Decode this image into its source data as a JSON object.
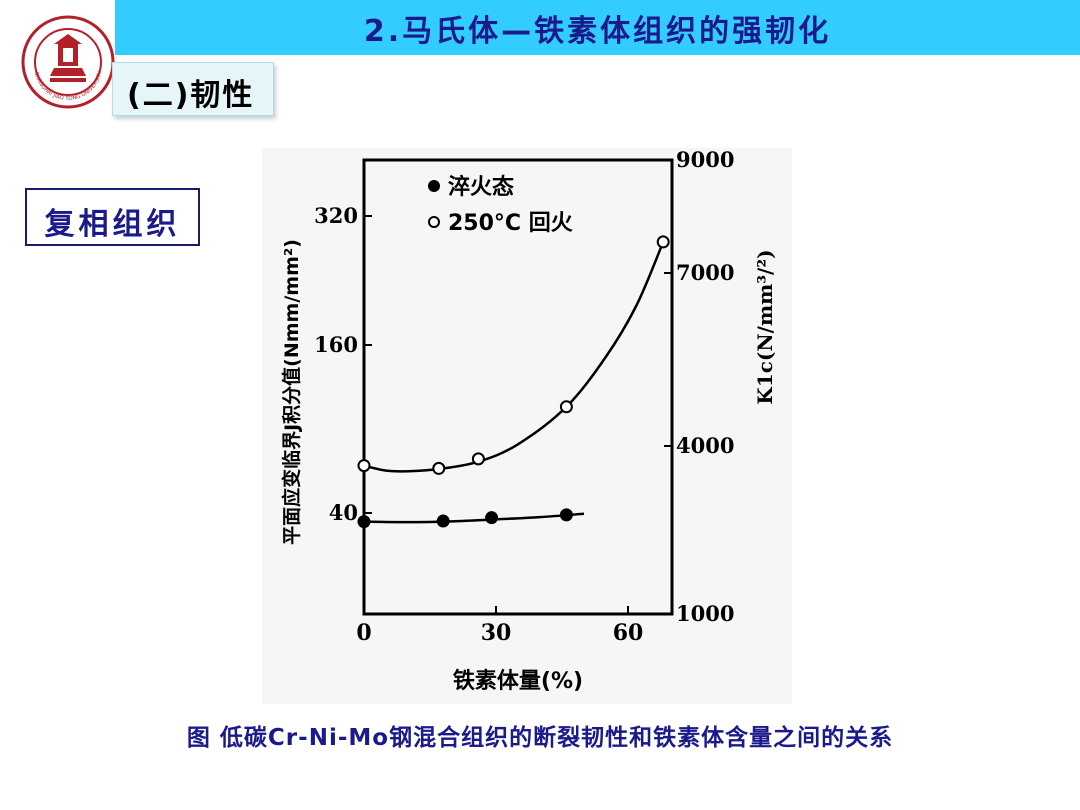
{
  "header": {
    "title": "2.马氏体—铁素体组织的强韧化"
  },
  "section": {
    "subtitle": "(二)韧性",
    "phase_label": "复相组织"
  },
  "logo": {
    "icon": "university-seal-icon",
    "text": "SHANGHAI JIAO TONG UNIVERSITY"
  },
  "caption": "图 低碳Cr-Ni-Mo钢混合组织的断裂韧性和铁素体含量之间的关系",
  "colors": {
    "title_bar": "#33ccff",
    "title_text": "#1a1a8c",
    "caption_text": "#1a1a8c"
  },
  "chart_data": {
    "type": "scatter",
    "xlabel": "铁素体量(%)",
    "ylabel_left": "平面应变临界J积分值(Nmm/mm²)",
    "ylabel_right": "K1c(N/mm³/²)",
    "x_ticks": [
      0,
      30,
      60
    ],
    "xlim": [
      0,
      70
    ],
    "y_left_ticks": [
      40,
      160,
      320
    ],
    "y_left_ticklabels": [
      "40",
      "160",
      "320"
    ],
    "y_right_ticks": [
      1000,
      4000,
      7000,
      9000
    ],
    "y_right_ticklabels": [
      "1000",
      "4000",
      "7000",
      "9000"
    ],
    "grid": false,
    "legend_position": "top",
    "series": [
      {
        "name": "淬火态",
        "marker": "filled-circle",
        "points": [
          [
            0,
            2650
          ],
          [
            18,
            2660
          ],
          [
            29,
            2720
          ],
          [
            46,
            2770
          ]
        ],
        "curve": [
          [
            0,
            2650
          ],
          [
            10,
            2640
          ],
          [
            20,
            2655
          ],
          [
            30,
            2690
          ],
          [
            40,
            2730
          ],
          [
            50,
            2790
          ]
        ]
      },
      {
        "name": "250°C 回火",
        "marker": "open-circle",
        "points": [
          [
            0,
            3650
          ],
          [
            17,
            3600
          ],
          [
            26,
            3770
          ],
          [
            46,
            4680
          ],
          [
            68,
            7550
          ]
        ],
        "curve": [
          [
            0,
            3650
          ],
          [
            5,
            3560
          ],
          [
            10,
            3550
          ],
          [
            17,
            3590
          ],
          [
            26,
            3720
          ],
          [
            35,
            4030
          ],
          [
            46,
            4680
          ],
          [
            55,
            5550
          ],
          [
            62,
            6450
          ],
          [
            68,
            7550
          ]
        ]
      }
    ]
  }
}
